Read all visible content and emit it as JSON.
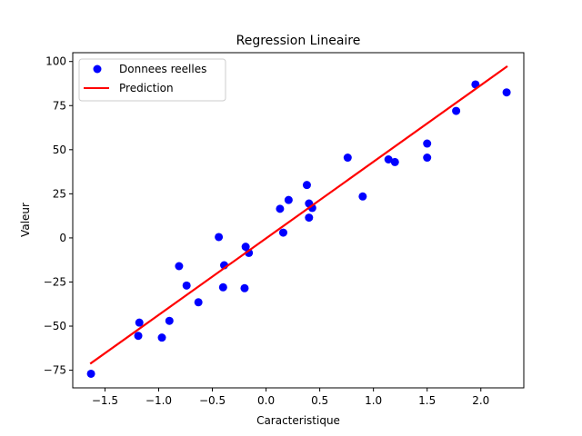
{
  "chart_data": {
    "type": "scatter",
    "title": "Regression Lineaire",
    "xlabel": "Caracteristique",
    "ylabel": "Valeur",
    "xlim": [
      -1.8,
      2.4
    ],
    "ylim": [
      -85,
      105
    ],
    "xticks": [
      -1.5,
      -1.0,
      -0.5,
      0.0,
      0.5,
      1.0,
      1.5,
      2.0
    ],
    "xtick_labels": [
      "−1.5",
      "−1.0",
      "−0.5",
      "0.0",
      "0.5",
      "1.0",
      "1.5",
      "2.0"
    ],
    "yticks": [
      -75,
      -50,
      -25,
      0,
      25,
      50,
      75,
      100
    ],
    "ytick_labels": [
      "−75",
      "−50",
      "−25",
      "0",
      "25",
      "50",
      "75",
      "100"
    ],
    "grid": false,
    "legend_position": "top-left",
    "series": [
      {
        "name": "Donnees reelles",
        "kind": "scatter",
        "color": "#0000ff",
        "points": [
          [
            -1.63,
            -77
          ],
          [
            -1.18,
            -48
          ],
          [
            -1.19,
            -55.5
          ],
          [
            -0.97,
            -56.5
          ],
          [
            -0.9,
            -47
          ],
          [
            -0.81,
            -16
          ],
          [
            -0.74,
            -27
          ],
          [
            -0.63,
            -36.5
          ],
          [
            -0.44,
            0.5
          ],
          [
            -0.4,
            -28
          ],
          [
            -0.39,
            -15.5
          ],
          [
            -0.2,
            -28.5
          ],
          [
            -0.19,
            -5
          ],
          [
            -0.16,
            -8.5
          ],
          [
            0.13,
            16.5
          ],
          [
            0.16,
            3
          ],
          [
            0.21,
            21.5
          ],
          [
            0.38,
            30
          ],
          [
            0.4,
            19.5
          ],
          [
            0.4,
            11.5
          ],
          [
            0.43,
            17
          ],
          [
            0.76,
            45.5
          ],
          [
            0.9,
            23.5
          ],
          [
            1.14,
            44.5
          ],
          [
            1.2,
            43
          ],
          [
            1.5,
            53.5
          ],
          [
            1.5,
            45.5
          ],
          [
            1.77,
            72
          ],
          [
            1.95,
            87
          ],
          [
            2.24,
            82.5
          ]
        ]
      },
      {
        "name": "Prediction",
        "kind": "line",
        "color": "#ff0000",
        "points": [
          [
            -1.63,
            -71
          ],
          [
            2.24,
            97
          ]
        ]
      }
    ]
  }
}
